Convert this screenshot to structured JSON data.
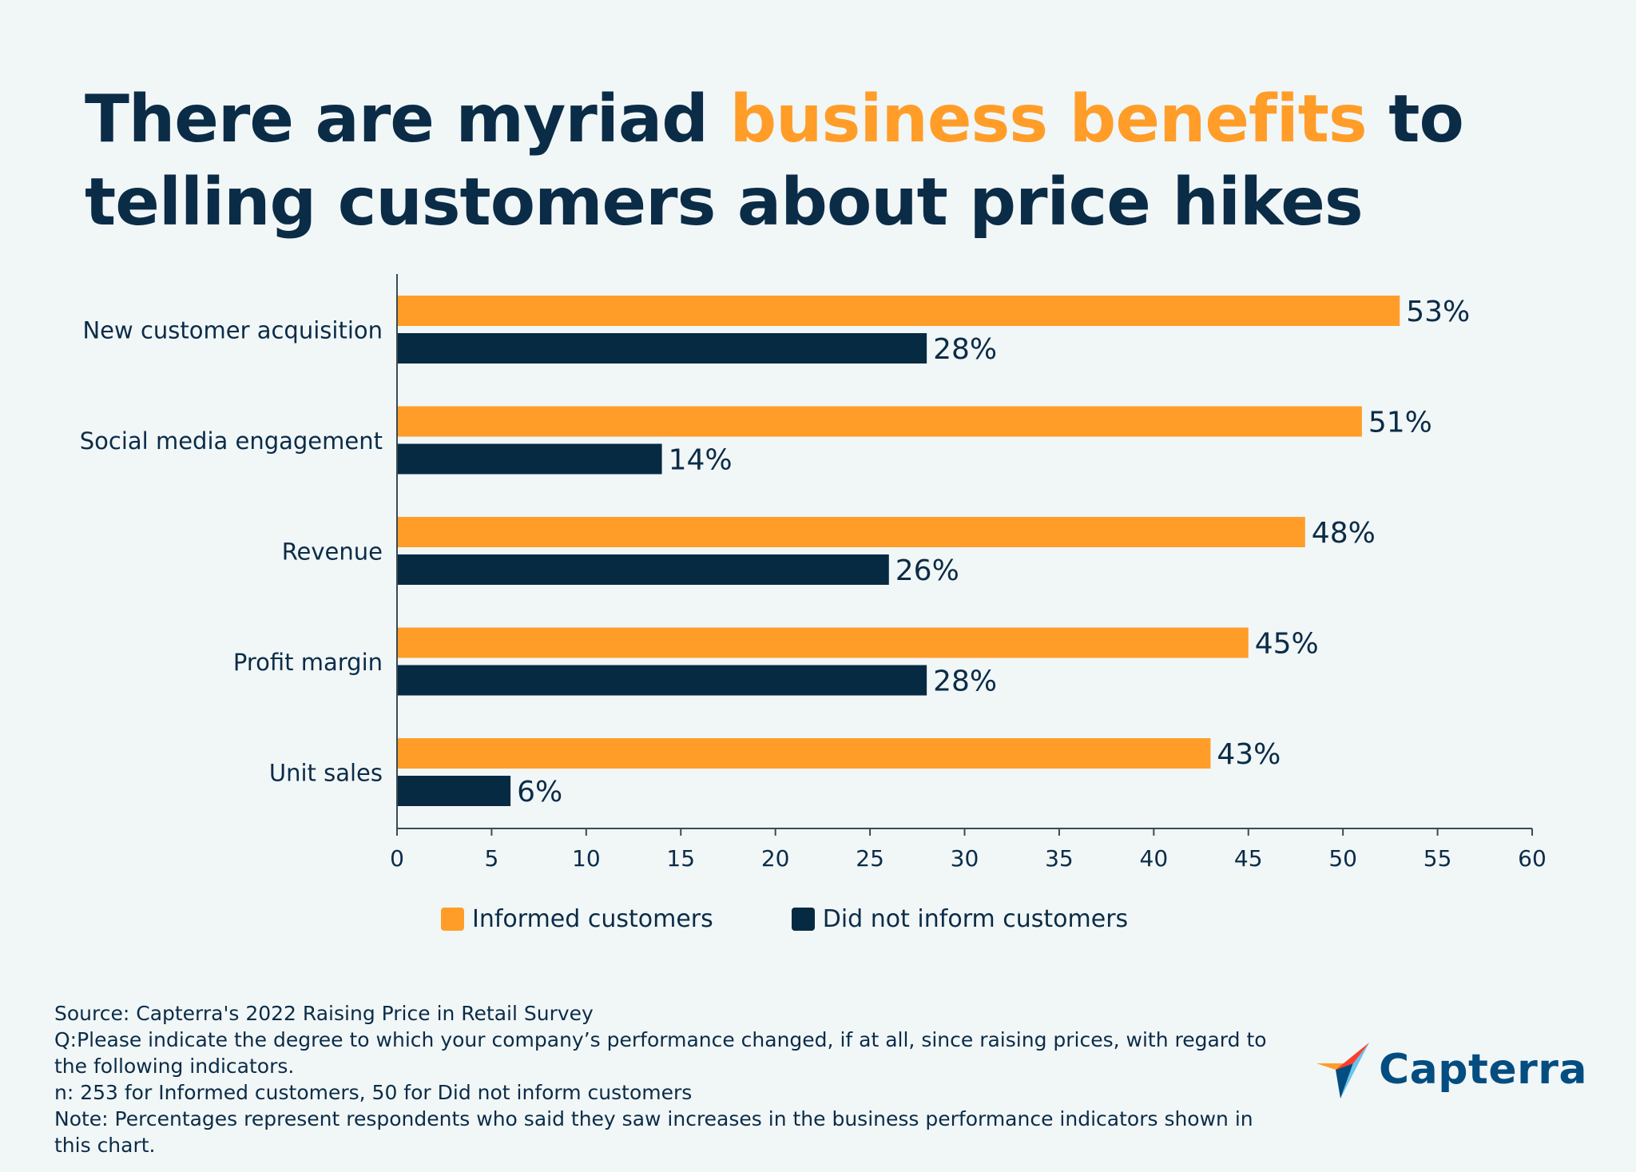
{
  "headline": {
    "part1": "There are myriad ",
    "highlight": "business benefits",
    "part2": " to telling customers about price hikes"
  },
  "colors": {
    "background": "#f1f6f7",
    "informed": "#ff9d28",
    "not_informed": "#062a42",
    "text": "#0b2c47",
    "logo_text": "#044d80"
  },
  "chart_data": {
    "type": "bar",
    "orientation": "horizontal",
    "title": "There are myriad business benefits to telling customers about price hikes",
    "categories": [
      "New customer acquisition",
      "Social media engagement",
      "Revenue",
      "Profit margin",
      "Unit sales"
    ],
    "series": [
      {
        "name": "Informed customers",
        "values": [
          53,
          51,
          48,
          45,
          43
        ],
        "labels": [
          "53%",
          "51%",
          "48%",
          "45%",
          "43%"
        ]
      },
      {
        "name": "Did not inform customers",
        "values": [
          28,
          14,
          26,
          28,
          6
        ],
        "labels": [
          "28%",
          "14%",
          "26%",
          "28%",
          "6%"
        ]
      }
    ],
    "xlim": [
      0,
      60
    ],
    "xticks": [
      0,
      5,
      10,
      15,
      20,
      25,
      30,
      35,
      40,
      45,
      50,
      55,
      60
    ],
    "xlabel": "",
    "ylabel": "",
    "grid": false,
    "legend_position": "bottom"
  },
  "legend": {
    "informed_label": "Informed customers",
    "not_informed_label": "Did not inform customers"
  },
  "footnotes": {
    "source": "Source: Capterra's 2022 Raising Price in Retail Survey",
    "question": "Q:Please indicate the degree to which your company’s performance changed, if at all, since raising prices, with regard to the following indicators.",
    "sample": "n: 253 for Informed customers, 50 for Did not inform customers",
    "note": "Note: Percentages represent respondents who said they saw increases in the business performance indicators shown in this chart."
  },
  "brand": {
    "name": "Capterra",
    "logo_icon": "capterra-arrow-icon"
  }
}
